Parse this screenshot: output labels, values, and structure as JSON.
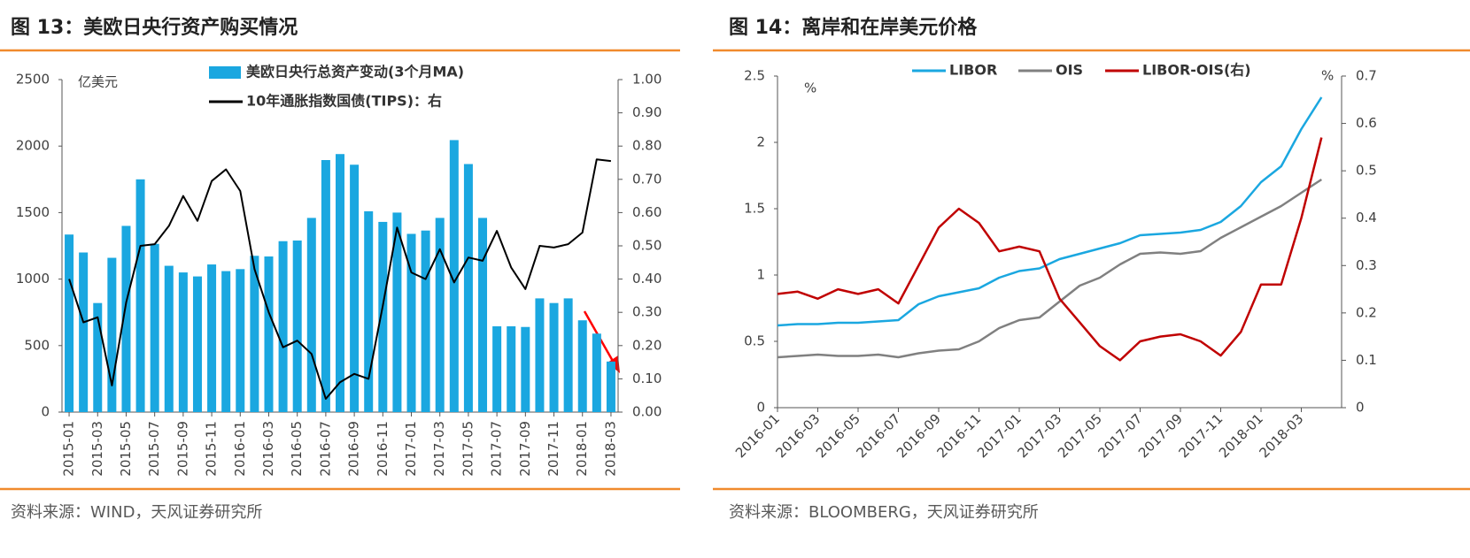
{
  "chart_data": [
    {
      "type": "bar",
      "title": "图 13：美欧日央行资产购买情况",
      "source": "资料来源：WIND，天风证券研究所",
      "y_unit": "亿美元",
      "categories": [
        "2015-01",
        null,
        "2015-03",
        null,
        "2015-05",
        null,
        "2015-07",
        null,
        "2015-09",
        null,
        "2015-11",
        null,
        "2016-01",
        null,
        "2016-03",
        null,
        "2016-05",
        null,
        "2016-07",
        null,
        "2016-09",
        null,
        "2016-11",
        null,
        "2017-01",
        null,
        "2017-03",
        null,
        "2017-05",
        null,
        "2017-07",
        null,
        "2017-09",
        null,
        "2017-11",
        null,
        "2018-01",
        null,
        "2018-03"
      ],
      "series": [
        {
          "name": "美欧日央行总资产变动(3个月MA)",
          "type": "bar",
          "color": "#1aa7e0",
          "values": [
            1335,
            1200,
            820,
            1160,
            1400,
            1750,
            1265,
            1100,
            1050,
            1020,
            1110,
            1060,
            1075,
            1175,
            1170,
            1285,
            1290,
            1460,
            1895,
            1940,
            1860,
            1510,
            1430,
            1500,
            1340,
            1365,
            1460,
            2045,
            1865,
            1460,
            645,
            645,
            640,
            855,
            820,
            855,
            690,
            590,
            380
          ]
        },
        {
          "name": "10年通胀指数国债(TIPS)：右",
          "type": "line",
          "axis": "y2",
          "color": "#000000",
          "values": [
            0.4,
            0.27,
            0.285,
            0.08,
            0.33,
            0.5,
            0.505,
            0.56,
            0.65,
            0.575,
            0.695,
            0.73,
            0.665,
            0.43,
            0.3,
            0.195,
            0.215,
            0.175,
            0.04,
            0.09,
            0.115,
            0.1,
            0.32,
            0.555,
            0.42,
            0.4,
            0.49,
            0.39,
            0.465,
            0.455,
            0.545,
            0.435,
            0.37,
            0.5,
            0.495,
            0.505,
            0.54,
            0.76,
            0.755
          ]
        }
      ],
      "ylim": [
        0,
        2500
      ],
      "yticks": [
        0,
        500,
        1000,
        1500,
        2000,
        2500
      ],
      "y2lim": [
        0,
        1
      ],
      "y2ticks": [
        {
          "value": 0,
          "label": "0.00"
        },
        {
          "value": 0.1,
          "label": "0.10"
        },
        {
          "value": 0.2,
          "label": "0.20"
        },
        {
          "value": 0.3,
          "label": "0.30"
        },
        {
          "value": 0.4,
          "label": "0.40"
        },
        {
          "value": 0.5,
          "label": "0.50"
        },
        {
          "value": 0.6,
          "label": "0.60"
        },
        {
          "value": 0.7,
          "label": "0.70"
        },
        {
          "value": 0.8,
          "label": "0.80"
        },
        {
          "value": 0.9,
          "label": "0.90"
        },
        {
          "value": 1,
          "label": "1.00"
        }
      ]
    },
    {
      "type": "line",
      "title": "图 14：离岸和在岸美元价格",
      "source": "资料来源：BLOOMBERG，天风证券研究所",
      "y_unit": "%",
      "y2_unit": "%",
      "categories": [
        "2016-01",
        null,
        "2016-03",
        null,
        "2016-05",
        null,
        "2016-07",
        null,
        "2016-09",
        null,
        "2016-11",
        null,
        "2017-01",
        null,
        "2017-03",
        null,
        "2017-05",
        null,
        "2017-07",
        null,
        "2017-09",
        null,
        "2017-11",
        null,
        "2018-01",
        null,
        "2018-03",
        null
      ],
      "series": [
        {
          "name": "LIBOR",
          "color": "#1aa7e0",
          "values": [
            0.62,
            0.63,
            0.63,
            0.64,
            0.64,
            0.65,
            0.66,
            0.78,
            0.84,
            0.87,
            0.9,
            0.98,
            1.03,
            1.05,
            1.12,
            1.16,
            1.2,
            1.24,
            1.3,
            1.31,
            1.32,
            1.34,
            1.4,
            1.52,
            1.7,
            1.82,
            2.1,
            2.34
          ]
        },
        {
          "name": "OIS",
          "color": "#808080",
          "values": [
            0.38,
            0.39,
            0.4,
            0.39,
            0.39,
            0.4,
            0.38,
            0.41,
            0.43,
            0.44,
            0.5,
            0.6,
            0.66,
            0.68,
            0.8,
            0.92,
            0.98,
            1.08,
            1.16,
            1.17,
            1.16,
            1.18,
            1.28,
            1.36,
            1.44,
            1.52,
            1.62,
            1.72
          ]
        },
        {
          "name": "LIBOR-OIS(右)",
          "color": "#c00000",
          "axis": "y2",
          "values": [
            0.24,
            0.245,
            0.23,
            0.25,
            0.24,
            0.25,
            0.22,
            0.3,
            0.38,
            0.42,
            0.39,
            0.33,
            0.34,
            0.33,
            0.23,
            0.18,
            0.13,
            0.1,
            0.14,
            0.15,
            0.155,
            0.14,
            0.11,
            0.16,
            0.26,
            0.26,
            0.4,
            0.57
          ]
        }
      ],
      "ylim": [
        0,
        2.5
      ],
      "yticks": [
        0,
        0.5,
        1,
        1.5,
        2,
        2.5
      ],
      "y2lim": [
        0,
        0.7
      ],
      "y2ticks": [
        0,
        0.1,
        0.2,
        0.3,
        0.4,
        0.5,
        0.6,
        0.7
      ]
    }
  ]
}
